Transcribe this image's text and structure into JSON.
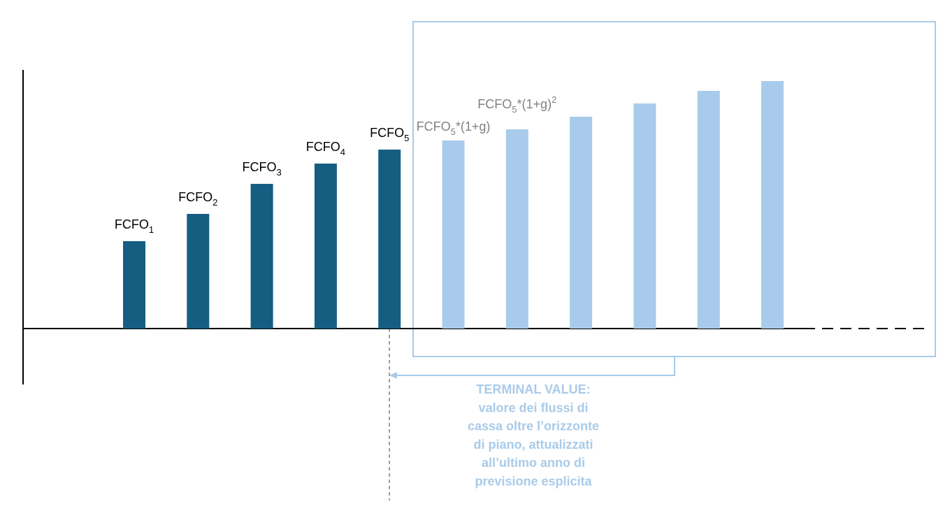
{
  "chart_data": {
    "type": "bar",
    "categories": [
      null,
      null,
      null,
      null,
      null,
      null,
      null,
      null,
      null,
      null,
      null
    ],
    "values": [
      125,
      164,
      207,
      236,
      256,
      269,
      285,
      303,
      322,
      340,
      354
    ],
    "colors": [
      "#155e82",
      "#155e82",
      "#155e82",
      "#155e82",
      "#155e82",
      "#a8cbeb",
      "#a8cbeb",
      "#a8cbeb",
      "#a8cbeb",
      "#a8cbeb",
      "#a8cbeb"
    ],
    "labels": [
      {
        "base": "FCFO",
        "sub": "1"
      },
      {
        "base": "FCFO",
        "sub": "2"
      },
      {
        "base": "FCFO",
        "sub": "3"
      },
      {
        "base": "FCFO",
        "sub": "4"
      },
      {
        "base": "FCFO",
        "sub": "5"
      },
      {
        "base": "FCFO",
        "sub": "5",
        "rest": "*(1+g)"
      },
      {
        "base": "FCFO",
        "sub": "5",
        "rest": "*(1+g)",
        "sup": "2"
      },
      null,
      null,
      null,
      null
    ],
    "label_colors": [
      "#000000",
      "#000000",
      "#000000",
      "#000000",
      "#000000",
      "#808080",
      "#808080",
      null,
      null,
      null,
      null
    ],
    "ylim": [
      -80,
      370
    ],
    "annotation": [
      "TERMINAL VALUE:",
      "valore dei flussi di",
      "cassa oltre l’orizzonte",
      "di piano, attualizzati",
      "all’ultimo anno di",
      "previsione esplicita"
    ]
  }
}
